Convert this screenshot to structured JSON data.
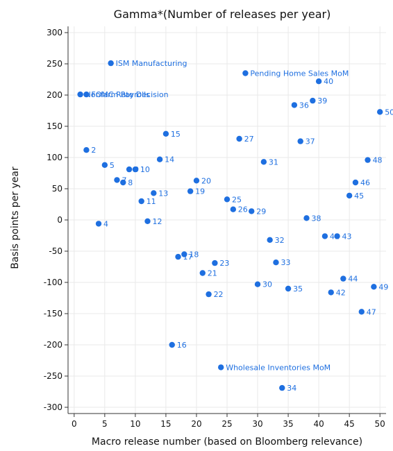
{
  "chart_data": {
    "type": "scatter",
    "title": "Gamma*(Number of releases per year)",
    "xlabel": "Macro release number (based on Bloomberg relevance)",
    "ylabel": "Basis points per year",
    "xlim": [
      -1,
      51
    ],
    "ylim": [
      -310,
      310
    ],
    "xticks": [
      0,
      5,
      10,
      15,
      20,
      25,
      30,
      35,
      40,
      45,
      50
    ],
    "yticks": [
      300,
      250,
      200,
      150,
      100,
      50,
      0,
      -50,
      -100,
      -150,
      -200,
      -250,
      -300
    ],
    "grid": true,
    "color": "#1e6fe0",
    "points": [
      {
        "x": 1,
        "y": 201,
        "label": "Nonfarm Payrolls"
      },
      {
        "x": 2,
        "y": 201,
        "label": "FOMC Rate Decision"
      },
      {
        "x": 2,
        "y": 112,
        "label": "2"
      },
      {
        "x": 4,
        "y": -6,
        "label": "4"
      },
      {
        "x": 5,
        "y": 88,
        "label": "5"
      },
      {
        "x": 6,
        "y": 251,
        "label": "ISM Manufacturing"
      },
      {
        "x": 7,
        "y": 64,
        "label": "7"
      },
      {
        "x": 8,
        "y": 60,
        "label": "8"
      },
      {
        "x": 9,
        "y": 81,
        "label": "9"
      },
      {
        "x": 10,
        "y": 81,
        "label": "10"
      },
      {
        "x": 11,
        "y": 30,
        "label": "11"
      },
      {
        "x": 12,
        "y": -2,
        "label": "12"
      },
      {
        "x": 13,
        "y": 43,
        "label": "13"
      },
      {
        "x": 14,
        "y": 97,
        "label": "14"
      },
      {
        "x": 15,
        "y": 138,
        "label": "15"
      },
      {
        "x": 16,
        "y": -200,
        "label": "16"
      },
      {
        "x": 17,
        "y": -59,
        "label": "17"
      },
      {
        "x": 18,
        "y": -55,
        "label": "18"
      },
      {
        "x": 19,
        "y": 46,
        "label": "19"
      },
      {
        "x": 20,
        "y": 63,
        "label": "20"
      },
      {
        "x": 21,
        "y": -85,
        "label": "21"
      },
      {
        "x": 22,
        "y": -119,
        "label": "22"
      },
      {
        "x": 23,
        "y": -69,
        "label": "23"
      },
      {
        "x": 24,
        "y": -236,
        "label": "Wholesale Inventories MoM"
      },
      {
        "x": 25,
        "y": 33,
        "label": "25"
      },
      {
        "x": 26,
        "y": 17,
        "label": "26"
      },
      {
        "x": 27,
        "y": 130,
        "label": "27"
      },
      {
        "x": 28,
        "y": 235,
        "label": "Pending Home Sales MoM"
      },
      {
        "x": 29,
        "y": 14,
        "label": "29"
      },
      {
        "x": 30,
        "y": -103,
        "label": "30"
      },
      {
        "x": 31,
        "y": 93,
        "label": "31"
      },
      {
        "x": 32,
        "y": -32,
        "label": "32"
      },
      {
        "x": 33,
        "y": -68,
        "label": "33"
      },
      {
        "x": 34,
        "y": -269,
        "label": "34"
      },
      {
        "x": 35,
        "y": -110,
        "label": "35"
      },
      {
        "x": 36,
        "y": 184,
        "label": "36"
      },
      {
        "x": 37,
        "y": 126,
        "label": "37"
      },
      {
        "x": 38,
        "y": 3,
        "label": "38"
      },
      {
        "x": 39,
        "y": 191,
        "label": "39"
      },
      {
        "x": 40,
        "y": 222,
        "label": "40"
      },
      {
        "x": 41,
        "y": -26,
        "label": "41"
      },
      {
        "x": 42,
        "y": -116,
        "label": "42"
      },
      {
        "x": 43,
        "y": -26,
        "label": "43"
      },
      {
        "x": 44,
        "y": -94,
        "label": "44"
      },
      {
        "x": 45,
        "y": 39,
        "label": "45"
      },
      {
        "x": 46,
        "y": 60,
        "label": "46"
      },
      {
        "x": 47,
        "y": -147,
        "label": "47"
      },
      {
        "x": 48,
        "y": 96,
        "label": "48"
      },
      {
        "x": 49,
        "y": -107,
        "label": "49"
      },
      {
        "x": 50,
        "y": 173,
        "label": "50"
      }
    ]
  }
}
